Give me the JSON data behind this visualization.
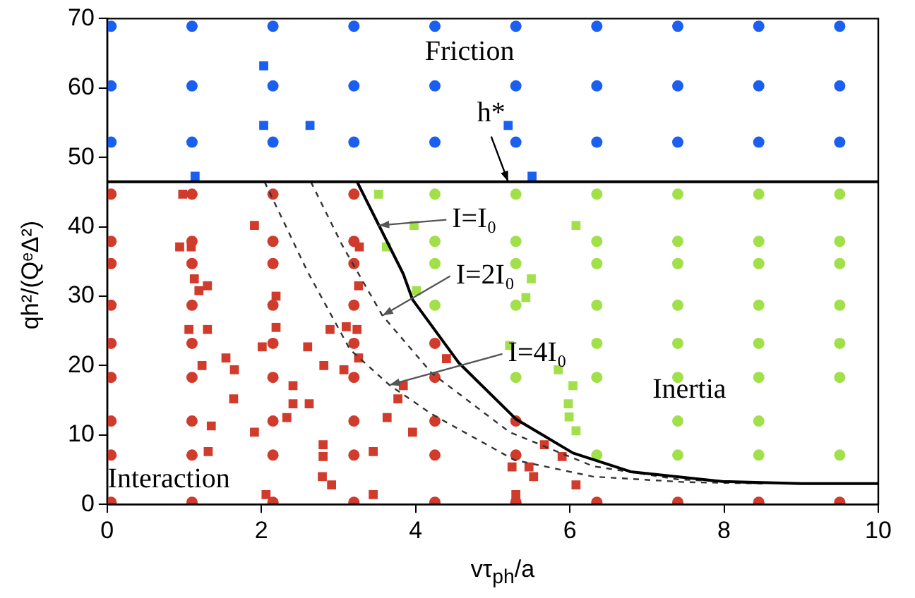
{
  "chart_data": {
    "type": "scatter",
    "xlabel": "vτ$_{ph}$/a",
    "ylabel": "qh²/(QᵉΔ²)",
    "xlim": [
      0,
      10
    ],
    "xticks": [
      0,
      2,
      4,
      6,
      8,
      10
    ],
    "ylim": [
      0,
      70
    ],
    "yticks": [
      0,
      10,
      20,
      30,
      40,
      50,
      60,
      70
    ],
    "grid": false,
    "legend": false,
    "ref_lines": [
      {
        "axis": "y",
        "value": 46.5,
        "color": "#000000"
      }
    ],
    "annotations": [
      "Friction",
      {
        "text": "h*",
        "x": 5.2,
        "y": 46.5
      },
      {
        "text": "I=I₀",
        "x": 3.52,
        "y": 40.2
      },
      {
        "text": "I=2I₀",
        "x": 3.57,
        "y": 27.2
      },
      {
        "text": "I=4I₀",
        "x": 3.66,
        "y": 17.2
      },
      "Inertia",
      "Interaction"
    ],
    "series": [
      {
        "type": "scatter",
        "marker": "circle",
        "color": "#1a5ff0",
        "x": [
          0.05,
          1.1,
          2.15,
          3.2,
          4.25,
          5.3,
          6.35,
          7.4,
          8.45,
          9.5,
          0.05,
          1.1,
          2.15,
          3.2,
          4.25,
          5.3,
          6.35,
          7.4,
          8.45,
          9.5,
          0.05,
          1.1,
          2.15,
          3.2,
          4.25,
          5.3,
          6.35,
          7.4,
          8.45,
          9.5
        ],
        "values": [
          68.9,
          68.9,
          68.9,
          68.9,
          68.9,
          68.9,
          68.9,
          68.9,
          68.9,
          68.9,
          60.3,
          60.3,
          60.3,
          60.3,
          60.3,
          60.3,
          60.3,
          60.3,
          60.3,
          60.3,
          52.2,
          52.2,
          52.2,
          52.2,
          52.2,
          52.2,
          52.2,
          52.2,
          52.2,
          52.2
        ]
      },
      {
        "type": "scatter",
        "marker": "square",
        "color": "#1a5ff0",
        "x": [
          2.03,
          2.03,
          2.63,
          5.2,
          1.14,
          5.51
        ],
        "values": [
          63.2,
          54.6,
          54.6,
          54.6,
          47.3,
          47.3
        ]
      },
      {
        "type": "scatter",
        "marker": "circle",
        "color": "#d03b2b",
        "x": [
          0.05,
          0.05,
          0.05,
          0.05,
          0.05,
          0.05,
          0.05,
          0.05,
          0.05,
          1.1,
          1.1,
          1.1,
          1.1,
          1.1,
          1.1,
          1.1,
          1.1,
          1.1,
          2.15,
          2.15,
          2.15,
          2.15,
          2.15,
          2.15,
          2.15,
          2.15,
          2.15,
          3.2,
          3.2,
          3.2,
          3.2,
          3.2,
          3.2,
          3.2,
          3.2,
          3.2,
          4.25,
          4.25,
          4.25,
          4.25,
          4.25,
          5.3,
          5.3,
          5.3,
          6.35,
          7.4,
          8.45,
          9.5
        ],
        "values": [
          44.7,
          37.9,
          34.7,
          28.7,
          23.2,
          18.3,
          12.0,
          7.1,
          0.3,
          44.7,
          37.9,
          34.7,
          28.7,
          23.2,
          18.3,
          12.0,
          7.1,
          0.3,
          44.7,
          37.9,
          34.7,
          28.7,
          23.2,
          18.3,
          12.0,
          7.1,
          0.3,
          44.7,
          37.9,
          34.7,
          28.7,
          23.2,
          18.3,
          12.0,
          7.1,
          0.3,
          23.2,
          18.3,
          12.0,
          7.1,
          0.3,
          12.0,
          7.1,
          0.3,
          0.3,
          0.3,
          0.3,
          0.3
        ]
      },
      {
        "type": "scatter",
        "marker": "square",
        "color": "#d03b2b",
        "x": [
          0.98,
          1.91,
          0.94,
          1.09,
          3.27,
          1.13,
          1.19,
          1.3,
          2.19,
          3.26,
          1.06,
          1.3,
          2.19,
          2.89,
          3.1,
          3.24,
          2.01,
          2.6,
          1.54,
          1.65,
          1.23,
          2.81,
          3.07,
          3.26,
          2.41,
          3.84,
          2.41,
          2.62,
          1.64,
          3.77,
          2.33,
          1.35,
          3.63,
          1.91,
          3.96,
          2.8,
          2.8,
          1.31,
          3.45,
          2.79,
          2.91,
          2.06,
          3.45,
          4.4,
          5.25,
          5.47,
          5.53,
          5.67,
          5.9,
          6.08,
          5.3
        ],
        "values": [
          44.7,
          40.2,
          37.1,
          37.1,
          37.1,
          32.5,
          30.8,
          31.5,
          30.0,
          31.5,
          25.2,
          25.2,
          25.5,
          25.2,
          25.6,
          25.2,
          22.7,
          22.7,
          21.1,
          19.4,
          20.0,
          20.0,
          19.4,
          21.1,
          17.1,
          17.1,
          14.5,
          14.5,
          15.2,
          15.2,
          12.5,
          11.3,
          12.5,
          10.4,
          10.4,
          8.6,
          6.9,
          7.6,
          7.6,
          4.0,
          2.8,
          1.4,
          1.4,
          21.0,
          5.4,
          5.4,
          4.0,
          8.6,
          6.9,
          2.8,
          1.4
        ]
      },
      {
        "type": "scatter",
        "marker": "circle",
        "color": "#a2e04a",
        "x": [
          4.25,
          4.25,
          4.25,
          4.25,
          5.3,
          5.3,
          5.3,
          5.3,
          5.3,
          6.35,
          6.35,
          6.35,
          6.35,
          6.35,
          6.35,
          6.35,
          7.4,
          7.4,
          7.4,
          7.4,
          7.4,
          7.4,
          7.4,
          7.4,
          8.45,
          8.45,
          8.45,
          8.45,
          8.45,
          8.45,
          8.45,
          8.45,
          9.5,
          9.5,
          9.5,
          9.5,
          9.5,
          9.5,
          9.5
        ],
        "values": [
          44.7,
          37.9,
          34.7,
          28.7,
          44.7,
          37.9,
          34.7,
          28.7,
          18.3,
          44.7,
          37.9,
          34.7,
          28.7,
          23.2,
          18.3,
          7.1,
          44.7,
          37.9,
          34.7,
          28.7,
          23.2,
          18.3,
          12.0,
          7.1,
          44.7,
          37.9,
          34.7,
          28.7,
          23.2,
          18.3,
          12.0,
          7.1,
          44.7,
          37.9,
          34.7,
          28.7,
          23.2,
          18.3,
          7.1
        ]
      },
      {
        "type": "scatter",
        "marker": "square",
        "color": "#a2e04a",
        "x": [
          3.52,
          3.98,
          3.62,
          4.01,
          5.22,
          6.08,
          5.5,
          5.43,
          5.85,
          6.04,
          5.98,
          5.99,
          6.08
        ],
        "values": [
          44.7,
          40.2,
          37.1,
          30.8,
          22.9,
          40.2,
          32.5,
          29.8,
          19.4,
          17.1,
          14.5,
          12.6,
          10.6
        ]
      },
      {
        "type": "line",
        "marker": "none",
        "line_style": "solid",
        "color": "#000000",
        "x": [
          3.24,
          3.84,
          3.96,
          4.56,
          5.3,
          6.04,
          6.79,
          7.98,
          9.0,
          10.0
        ],
        "values": [
          46.5,
          33.2,
          29.5,
          20.4,
          12.3,
          7.4,
          4.7,
          3.3,
          3.0,
          3.0
        ]
      },
      {
        "type": "line",
        "marker": "none",
        "line_style": "dashed",
        "color": "#333333",
        "x": [
          2.64,
          3.05,
          3.57,
          4.21,
          5.22,
          6.3,
          7.4,
          8.5
        ],
        "values": [
          46.5,
          37.3,
          27.2,
          18.9,
          10.4,
          5.5,
          3.6,
          3.0
        ]
      },
      {
        "type": "line",
        "marker": "none",
        "line_style": "dashed",
        "color": "#333333",
        "x": [
          2.04,
          2.6,
          3.15,
          3.66,
          4.21,
          5.28,
          6.3,
          7.5,
          8.5
        ],
        "values": [
          46.5,
          33.5,
          22.3,
          17.2,
          13.0,
          6.4,
          4.0,
          3.2,
          3.0
        ]
      }
    ]
  }
}
